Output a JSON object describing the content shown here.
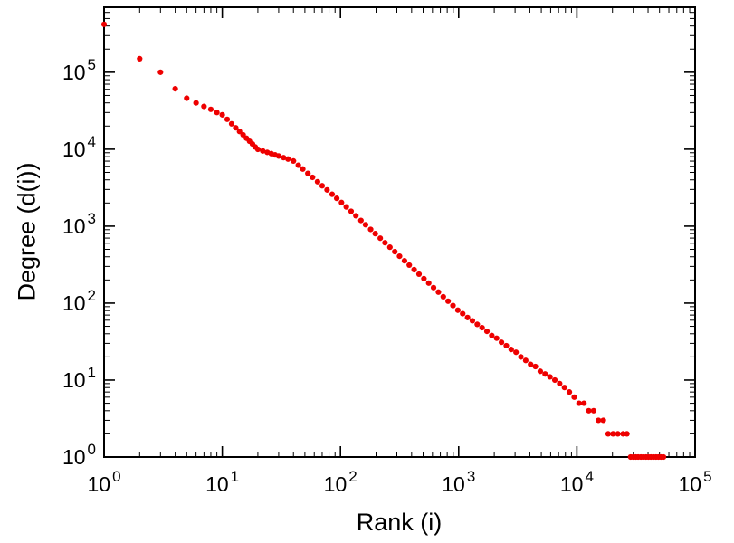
{
  "chart_data": {
    "type": "scatter",
    "title": "",
    "xlabel": "Rank (i)",
    "ylabel": "Degree (d(i))",
    "x_scale": "log",
    "y_scale": "log",
    "xlim": [
      1,
      100000
    ],
    "ylim": [
      1,
      700000
    ],
    "x_tick_exponents": [
      0,
      1,
      2,
      3,
      4,
      5
    ],
    "y_tick_exponents": [
      0,
      1,
      2,
      3,
      4,
      5
    ],
    "tick_label_base": "10",
    "grid": false,
    "legend": null,
    "marker": {
      "shape": "circle",
      "color": "#ee0000",
      "radius": 3.1
    },
    "frame_color": "#000000",
    "background_color": "#ffffff",
    "points": [
      [
        1,
        420000
      ],
      [
        2,
        150000
      ],
      [
        3,
        100000
      ],
      [
        4,
        61000
      ],
      [
        5,
        46000
      ],
      [
        6,
        40000
      ],
      [
        7,
        36000
      ],
      [
        8,
        33000
      ],
      [
        9,
        30000
      ],
      [
        10,
        28000
      ],
      [
        11,
        24500
      ],
      [
        12,
        21400
      ],
      [
        13,
        19000
      ],
      [
        14,
        17000
      ],
      [
        15,
        15400
      ],
      [
        16,
        13900
      ],
      [
        17,
        12700
      ],
      [
        18,
        11700
      ],
      [
        19,
        10700
      ],
      [
        20,
        9970
      ],
      [
        22,
        9500
      ],
      [
        24,
        9100
      ],
      [
        26,
        8760
      ],
      [
        28,
        8440
      ],
      [
        30,
        8160
      ],
      [
        33,
        7770
      ],
      [
        36,
        7450
      ],
      [
        40,
        7030
      ],
      [
        44,
        6200
      ],
      [
        48,
        5530
      ],
      [
        53,
        4850
      ],
      [
        58,
        4310
      ],
      [
        64,
        3780
      ],
      [
        70,
        3350
      ],
      [
        77,
        2960
      ],
      [
        85,
        2600
      ],
      [
        93,
        2300
      ],
      [
        102,
        2030
      ],
      [
        112,
        1780
      ],
      [
        123,
        1560
      ],
      [
        135,
        1365
      ],
      [
        149,
        1186
      ],
      [
        163,
        1045
      ],
      [
        180,
        908
      ],
      [
        197,
        800
      ],
      [
        217,
        697
      ],
      [
        238,
        610
      ],
      [
        262,
        533
      ],
      [
        288,
        466
      ],
      [
        316,
        407
      ],
      [
        348,
        355
      ],
      [
        382,
        312
      ],
      [
        420,
        272
      ],
      [
        462,
        238
      ],
      [
        508,
        208
      ],
      [
        558,
        182
      ],
      [
        613,
        159
      ],
      [
        674,
        139
      ],
      [
        741,
        121
      ],
      [
        814,
        106
      ],
      [
        895,
        93
      ],
      [
        984,
        81
      ],
      [
        1081,
        73
      ],
      [
        1189,
        65
      ],
      [
        1306,
        59
      ],
      [
        1436,
        53
      ],
      [
        1578,
        48
      ],
      [
        1734,
        43
      ],
      [
        1906,
        38
      ],
      [
        2095,
        35
      ],
      [
        2302,
        31
      ],
      [
        2530,
        28
      ],
      [
        2781,
        25
      ],
      [
        3056,
        23
      ],
      [
        3359,
        20
      ],
      [
        3692,
        18
      ],
      [
        4057,
        16
      ],
      [
        4459,
        15
      ],
      [
        4901,
        13
      ],
      [
        5386,
        12
      ],
      [
        5920,
        11
      ],
      [
        6506,
        10
      ],
      [
        7151,
        9
      ],
      [
        7859,
        8
      ],
      [
        8638,
        7
      ],
      [
        9494,
        6
      ],
      [
        10434,
        5
      ],
      [
        11468,
        5
      ],
      [
        12604,
        4
      ],
      [
        13852,
        4
      ],
      [
        15224,
        3
      ],
      [
        16732,
        3
      ],
      [
        18390,
        2
      ],
      [
        20212,
        2
      ],
      [
        22215,
        2
      ],
      [
        24600,
        2
      ],
      [
        26500,
        2
      ],
      [
        28500,
        1
      ],
      [
        30000,
        1
      ],
      [
        31500,
        1
      ],
      [
        33000,
        1
      ],
      [
        34800,
        1
      ],
      [
        36500,
        1
      ],
      [
        38400,
        1
      ],
      [
        40300,
        1
      ],
      [
        42300,
        1
      ],
      [
        44500,
        1
      ],
      [
        46700,
        1
      ],
      [
        49000,
        1
      ],
      [
        51500,
        1
      ],
      [
        54000,
        1
      ]
    ]
  }
}
